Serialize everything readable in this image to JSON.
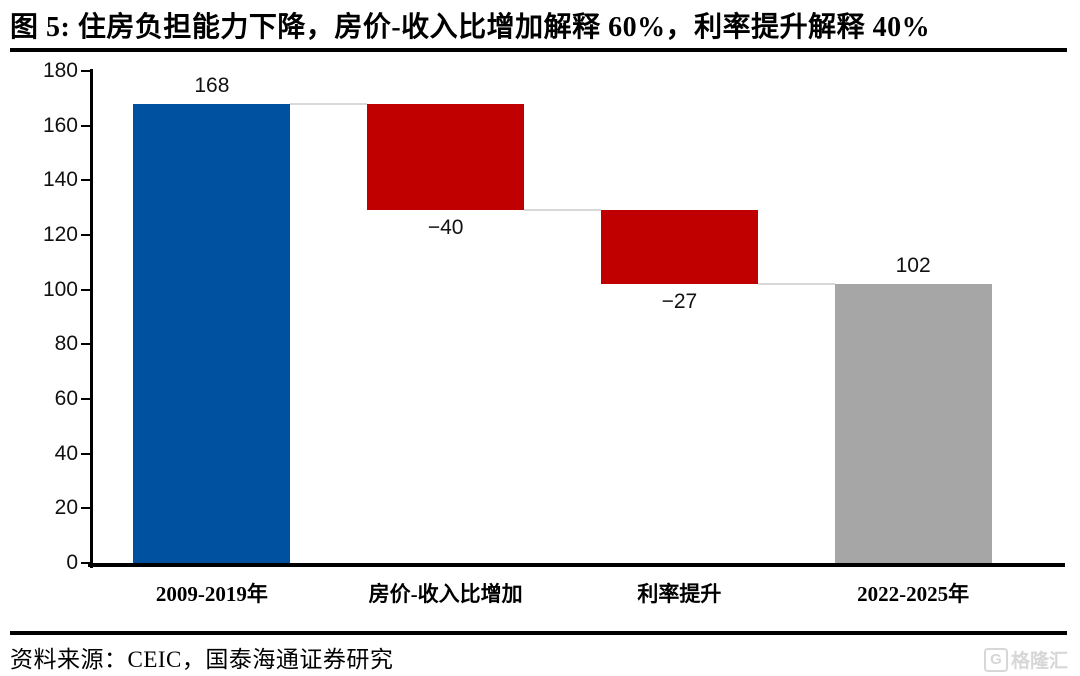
{
  "title": "图 5:  住房负担能力下降，房价-收入比增加解释 60%，利率提升解释 40%",
  "source": "资料来源：CEIC，国泰海通证券研究",
  "watermark": {
    "logo_letter": "G",
    "text": "格隆汇"
  },
  "colors": {
    "start_total_bar": "#00519F",
    "decrease_bar": "#C00000",
    "final_total_bar": "#A6A6A6",
    "connector": "#D9D9D9",
    "axis": "#000000",
    "label_text": "#111111"
  },
  "chart_data": {
    "type": "bar",
    "subtype": "waterfall",
    "title": "住房负担能力下降，房价-收入比增加解释 60%，利率提升解释 40%",
    "xlabel": "",
    "ylabel": "",
    "ylim": [
      0,
      180
    ],
    "yticks": [
      0,
      20,
      40,
      60,
      80,
      100,
      120,
      140,
      160,
      180
    ],
    "grid": false,
    "legend": null,
    "categories": [
      "2009-2019年",
      "房价-收入比增加",
      "利率提升",
      "2022-2025年"
    ],
    "segments": [
      {
        "category": "2009-2019年",
        "from": 0,
        "to": 168,
        "label": "168",
        "label_position": "above",
        "role": "start-total",
        "color_key": "start_total_bar"
      },
      {
        "category": "房价-收入比增加",
        "from": 168,
        "to": 129,
        "label": "−40",
        "label_position": "below",
        "role": "decrease",
        "color_key": "decrease_bar"
      },
      {
        "category": "利率提升",
        "from": 129,
        "to": 102,
        "label": "−27",
        "label_position": "below",
        "role": "decrease",
        "color_key": "decrease_bar"
      },
      {
        "category": "2022-2025年",
        "from": 0,
        "to": 102,
        "label": "102",
        "label_position": "above",
        "role": "final-total",
        "color_key": "final_total_bar"
      }
    ]
  }
}
